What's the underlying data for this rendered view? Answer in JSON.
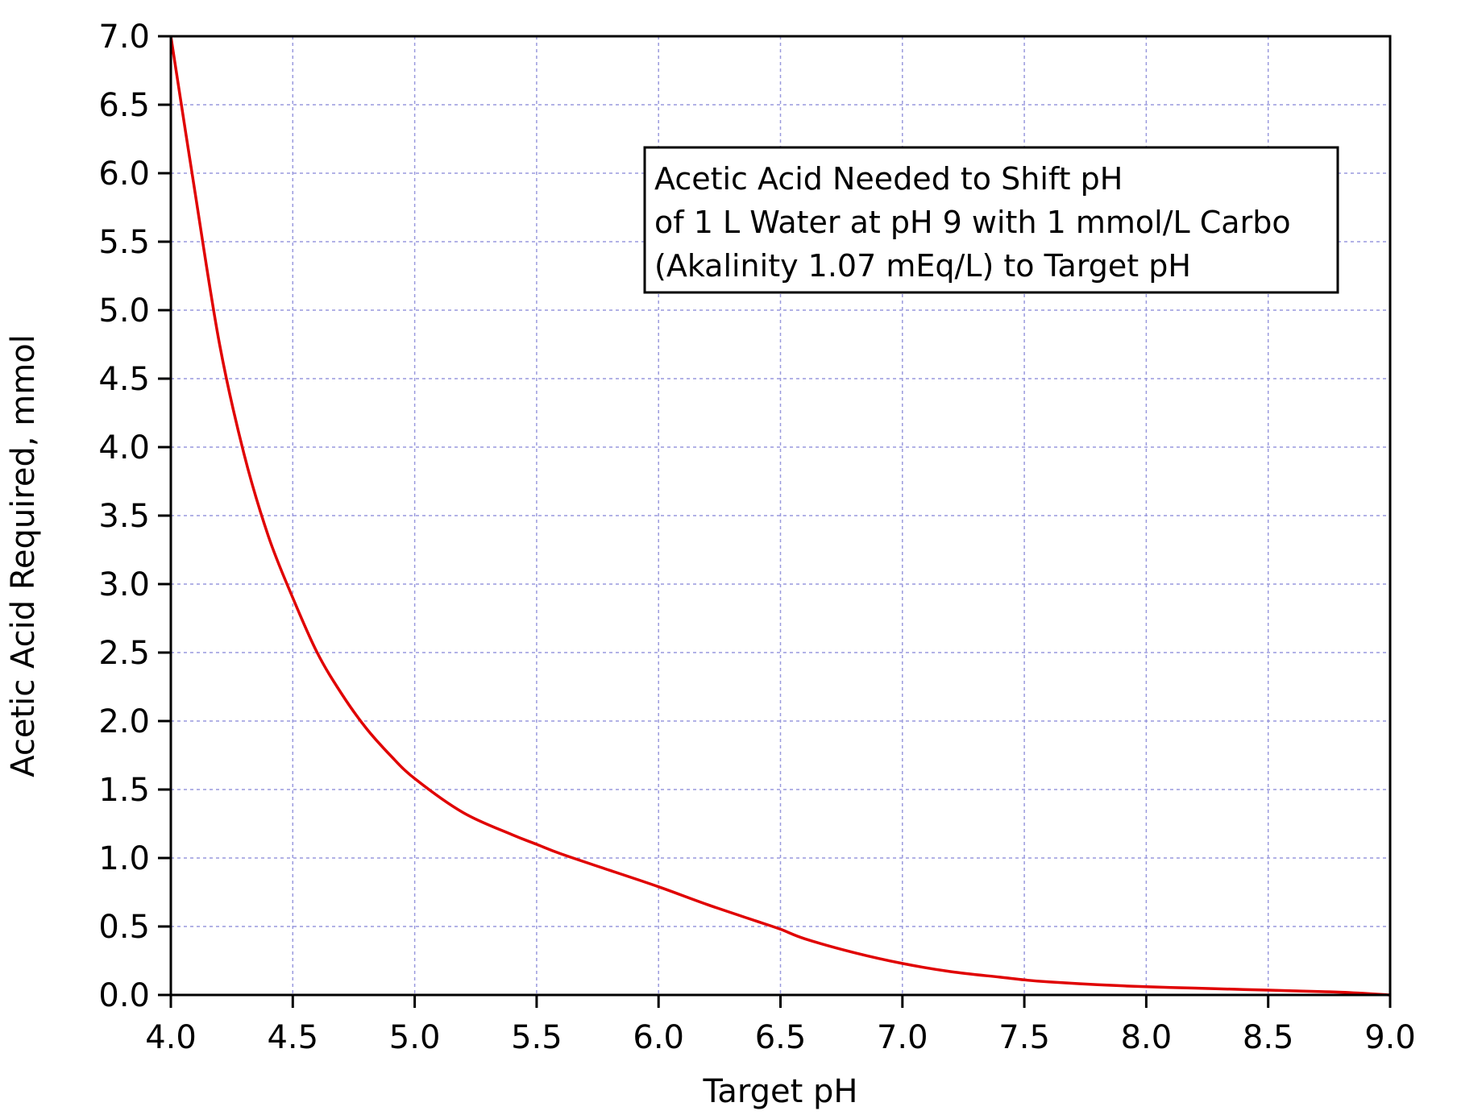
{
  "chart_data": {
    "type": "line",
    "title": "",
    "xlabel": "Target pH",
    "ylabel": "Acetic Acid Required, mmol",
    "xlim": [
      4.0,
      9.0
    ],
    "ylim": [
      0.0,
      7.0
    ],
    "x_ticks": [
      "4.0",
      "4.5",
      "5.0",
      "5.5",
      "6.0",
      "6.5",
      "7.0",
      "7.5",
      "8.0",
      "8.5",
      "9.0"
    ],
    "y_ticks": [
      "0.0",
      "0.5",
      "1.0",
      "1.5",
      "2.0",
      "2.5",
      "3.0",
      "3.5",
      "4.0",
      "4.5",
      "5.0",
      "5.5",
      "6.0",
      "6.5",
      "7.0"
    ],
    "grid": true,
    "legend": "none",
    "annotation_lines": [
      "Acetic Acid Needed to Shift pH",
      "of 1 L Water at pH 9 with 1 mmol/L Carbo",
      "(Akalinity 1.07 mEq/L) to Target pH"
    ],
    "annotation_position": "top-right",
    "series": [
      {
        "color": "#e00000",
        "x": [
          4.0,
          4.1,
          4.2,
          4.3,
          4.4,
          4.5,
          4.6,
          4.7,
          4.8,
          4.9,
          5.0,
          5.2,
          5.4,
          5.5,
          5.6,
          5.8,
          6.0,
          6.2,
          6.4,
          6.5,
          6.6,
          6.8,
          7.0,
          7.2,
          7.4,
          7.5,
          7.6,
          7.8,
          8.0,
          8.2,
          8.4,
          8.5,
          8.6,
          8.8,
          9.0
        ],
        "y": [
          7.0,
          5.85,
          4.75,
          3.95,
          3.35,
          2.9,
          2.5,
          2.2,
          1.95,
          1.75,
          1.58,
          1.33,
          1.17,
          1.1,
          1.03,
          0.91,
          0.79,
          0.66,
          0.54,
          0.48,
          0.41,
          0.31,
          0.23,
          0.17,
          0.13,
          0.11,
          0.095,
          0.075,
          0.06,
          0.05,
          0.04,
          0.035,
          0.03,
          0.02,
          0.0
        ]
      }
    ],
    "colors": {
      "grid": "#9999dd",
      "axis": "#000000",
      "curve": "#e00000"
    }
  }
}
